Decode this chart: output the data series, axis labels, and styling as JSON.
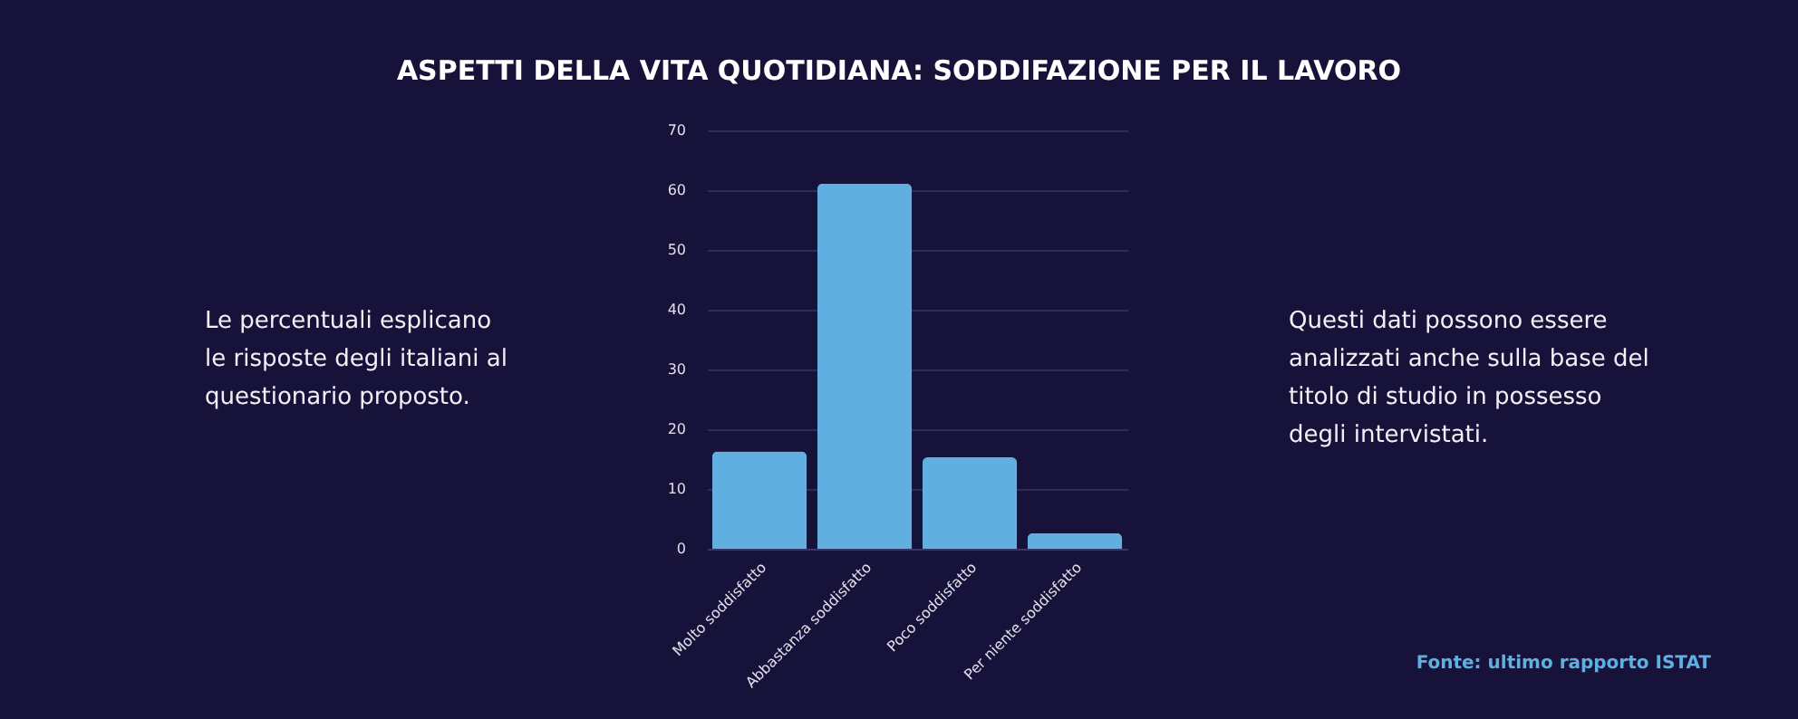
{
  "chart_data": {
    "type": "bar",
    "title": "ASPETTI DELLA VITA QUOTIDIANA: SODDIFAZIONE PER IL LAVORO",
    "categories": [
      "Molto soddisfatto",
      "Abbastanza soddisfatto",
      "Poco soddisfatto",
      "Per niente soddisfatto"
    ],
    "values": [
      16.3,
      61.1,
      15.3,
      2.6
    ],
    "color": "#5fb0e0",
    "ylim": [
      0,
      70
    ],
    "yticks": [
      0,
      10,
      20,
      30,
      40,
      50,
      60,
      70
    ],
    "grid": "y",
    "annotations": [
      "Le percentuali esplicano le risposte degli italiani al questionario proposto.",
      "Questi dati possono essere analizzati anche sulla base del titolo di studio in possesso degli intervistati.",
      "Fonte: ultimo rapporto ISTAT"
    ]
  }
}
